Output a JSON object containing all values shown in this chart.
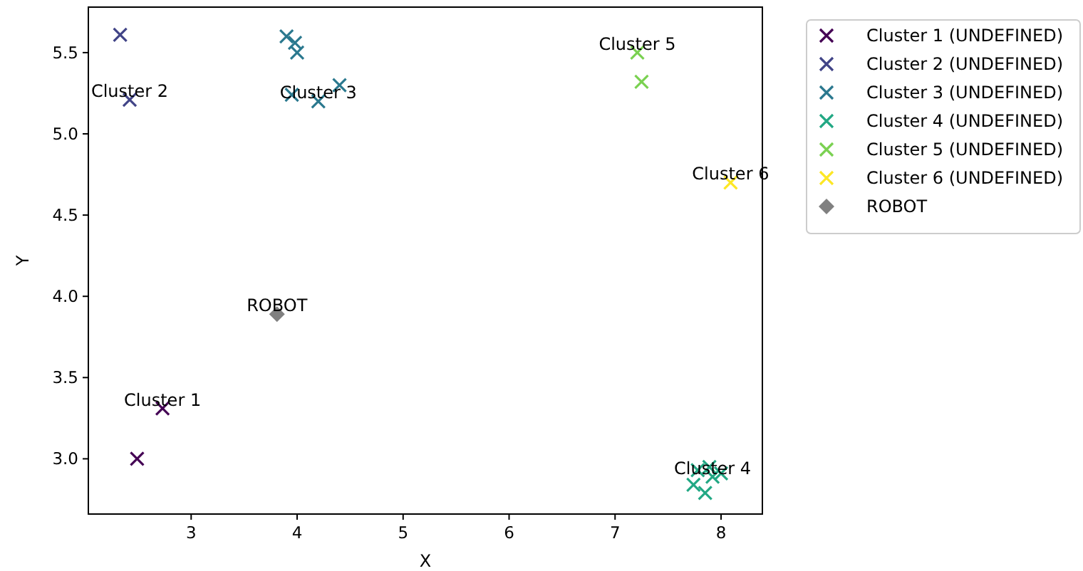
{
  "chart_data": {
    "type": "scatter",
    "xlabel": "X",
    "ylabel": "Y",
    "xlim": [
      2.03,
      8.39
    ],
    "ylim": [
      2.66,
      5.78
    ],
    "xticks": [
      3,
      4,
      5,
      6,
      7,
      8
    ],
    "yticks": [
      {
        "value": 3,
        "label": "3.0"
      },
      3.5,
      {
        "value": 4,
        "label": "4.0"
      },
      4.5,
      {
        "value": 5,
        "label": "5.0"
      },
      5.5
    ],
    "grid": false,
    "legend": "top right",
    "series": [
      {
        "name": "Cluster 1 (UNDEFINED)",
        "color": "#440154",
        "marker": "cross",
        "x": [
          2.49,
          2.73
        ],
        "values": [
          3.0,
          3.31
        ]
      },
      {
        "name": "Cluster 2 (UNDEFINED)",
        "color": "#414487",
        "marker": "cross",
        "x": [
          2.33,
          2.42
        ],
        "values": [
          5.61,
          5.21
        ]
      },
      {
        "name": "Cluster 3 (UNDEFINED)",
        "color": "#2a788e",
        "marker": "cross",
        "x": [
          3.9,
          3.98,
          4.0,
          3.95,
          4.2,
          4.4
        ],
        "values": [
          5.6,
          5.56,
          5.5,
          5.24,
          5.2,
          5.3
        ]
      },
      {
        "name": "Cluster 4 (UNDEFINED)",
        "color": "#22a884",
        "marker": "cross",
        "x": [
          7.74,
          7.85,
          7.78,
          7.89,
          8.0,
          7.92
        ],
        "values": [
          2.84,
          2.79,
          2.93,
          2.95,
          2.91,
          2.89
        ]
      },
      {
        "name": "Cluster 5 (UNDEFINED)",
        "color": "#7ad151",
        "marker": "cross",
        "x": [
          7.21,
          7.25
        ],
        "values": [
          5.5,
          5.32
        ]
      },
      {
        "name": "Cluster 6 (UNDEFINED)",
        "color": "#fde725",
        "marker": "cross",
        "x": [
          8.09
        ],
        "values": [
          4.7
        ]
      },
      {
        "name": "ROBOT",
        "color": "#808080",
        "marker": "diamond",
        "x": [
          3.81
        ],
        "values": [
          3.89
        ]
      }
    ],
    "annotations": [
      {
        "text": "Cluster 1",
        "x": 2.73,
        "y": 3.31
      },
      {
        "text": "Cluster 2",
        "x": 2.42,
        "y": 5.21
      },
      {
        "text": "Cluster 3",
        "x": 4.2,
        "y": 5.2
      },
      {
        "text": "Cluster 4",
        "x": 7.92,
        "y": 2.89
      },
      {
        "text": "Cluster 5",
        "x": 7.21,
        "y": 5.5
      },
      {
        "text": "Cluster 6",
        "x": 8.09,
        "y": 4.7
      },
      {
        "text": "ROBOT",
        "x": 3.81,
        "y": 3.89
      }
    ]
  }
}
